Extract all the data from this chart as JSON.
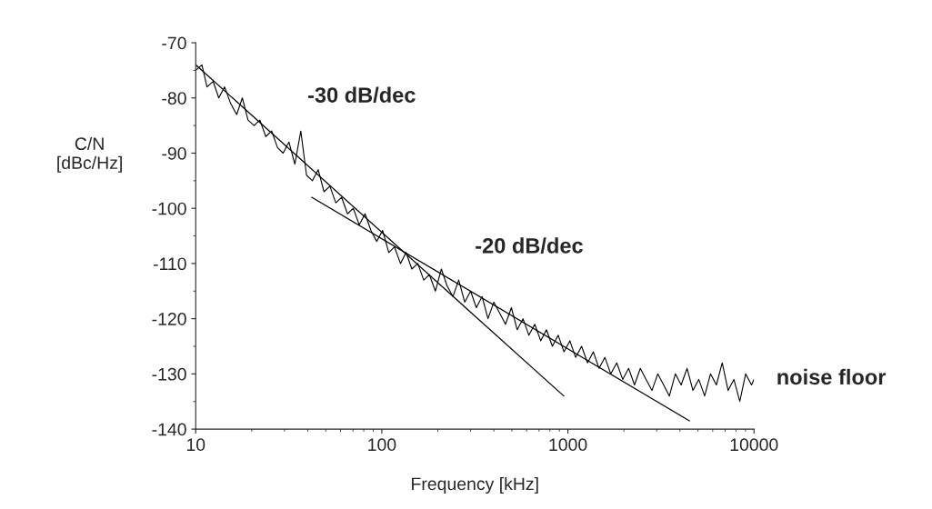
{
  "chart_data": {
    "type": "line",
    "xlabel": "Frequency [kHz]",
    "ylabel": "C/N\n[dBc/Hz]",
    "log": "x",
    "xlim": [
      10,
      10000
    ],
    "xticks": [
      10,
      100,
      1000,
      10000
    ],
    "ylim": [
      -140,
      -70
    ],
    "yticks": [
      -140,
      -130,
      -120,
      -110,
      -100,
      -90,
      -80,
      -70
    ],
    "grid": false,
    "legend": false,
    "marker": "none",
    "line_style": "solid",
    "series": [
      {
        "color": "#000000",
        "x": [
          10,
          10.8,
          11.5,
          12.4,
          13.3,
          14.3,
          15.4,
          16.6,
          17.8,
          19.1,
          20.6,
          22.1,
          23.8,
          25.6,
          27.5,
          29.5,
          31.7,
          34.1,
          36.7,
          39.4,
          42.4,
          45.5,
          48.9,
          52.6,
          56.6,
          60.8,
          65.4,
          70.3,
          75.6,
          81.3,
          87.4,
          93.9,
          101,
          109,
          117,
          126,
          135,
          145,
          156,
          168,
          180,
          194,
          209,
          224,
          241,
          259,
          279,
          300,
          322,
          346,
          372,
          400,
          430,
          462,
          497,
          534,
          574,
          617,
          664,
          714,
          767,
          825,
          887,
          953,
          1025,
          1100,
          1185,
          1275,
          1370,
          1470,
          1580,
          1700,
          1830,
          1970,
          2120,
          2280,
          2450,
          2630,
          2830,
          3040,
          3270,
          3510,
          3780,
          4060,
          4370,
          4700,
          5050,
          5430,
          5840,
          6280,
          6750,
          7260,
          7800,
          8390,
          9020,
          9700,
          10000
        ],
        "values": [
          -75,
          -74,
          -78,
          -77,
          -80,
          -78,
          -81,
          -83,
          -80,
          -84,
          -85,
          -84,
          -87,
          -86,
          -89,
          -90,
          -88,
          -92,
          -86,
          -94,
          -95,
          -93,
          -97,
          -96,
          -99,
          -98,
          -101,
          -100,
          -103,
          -101,
          -104,
          -106,
          -104,
          -108,
          -107,
          -110,
          -108,
          -111,
          -110,
          -113,
          -112,
          -115,
          -111,
          -114,
          -116,
          -113,
          -117,
          -115,
          -118,
          -116,
          -120,
          -117,
          -119,
          -121,
          -118,
          -122,
          -120,
          -123,
          -121,
          -124,
          -122,
          -125,
          -123,
          -126,
          -124,
          -127,
          -125,
          -128,
          -126,
          -129,
          -127,
          -130,
          -128,
          -131,
          -129,
          -132,
          -129,
          -131,
          -133,
          -130,
          -132,
          -134,
          -130,
          -132,
          -129,
          -133,
          -131,
          -134,
          -130,
          -132,
          -128,
          -133,
          -131,
          -135,
          -130,
          -132,
          -131
        ]
      },
      {
        "color": "#000000",
        "x": [
          10,
          950
        ],
        "values": [
          -74,
          -134
        ]
      },
      {
        "color": "#000000",
        "x": [
          42,
          4500
        ],
        "values": [
          -98,
          -138.5
        ]
      }
    ],
    "annotations": [
      "-30 dB/dec",
      "-20 dB/dec",
      "noise floor"
    ]
  }
}
